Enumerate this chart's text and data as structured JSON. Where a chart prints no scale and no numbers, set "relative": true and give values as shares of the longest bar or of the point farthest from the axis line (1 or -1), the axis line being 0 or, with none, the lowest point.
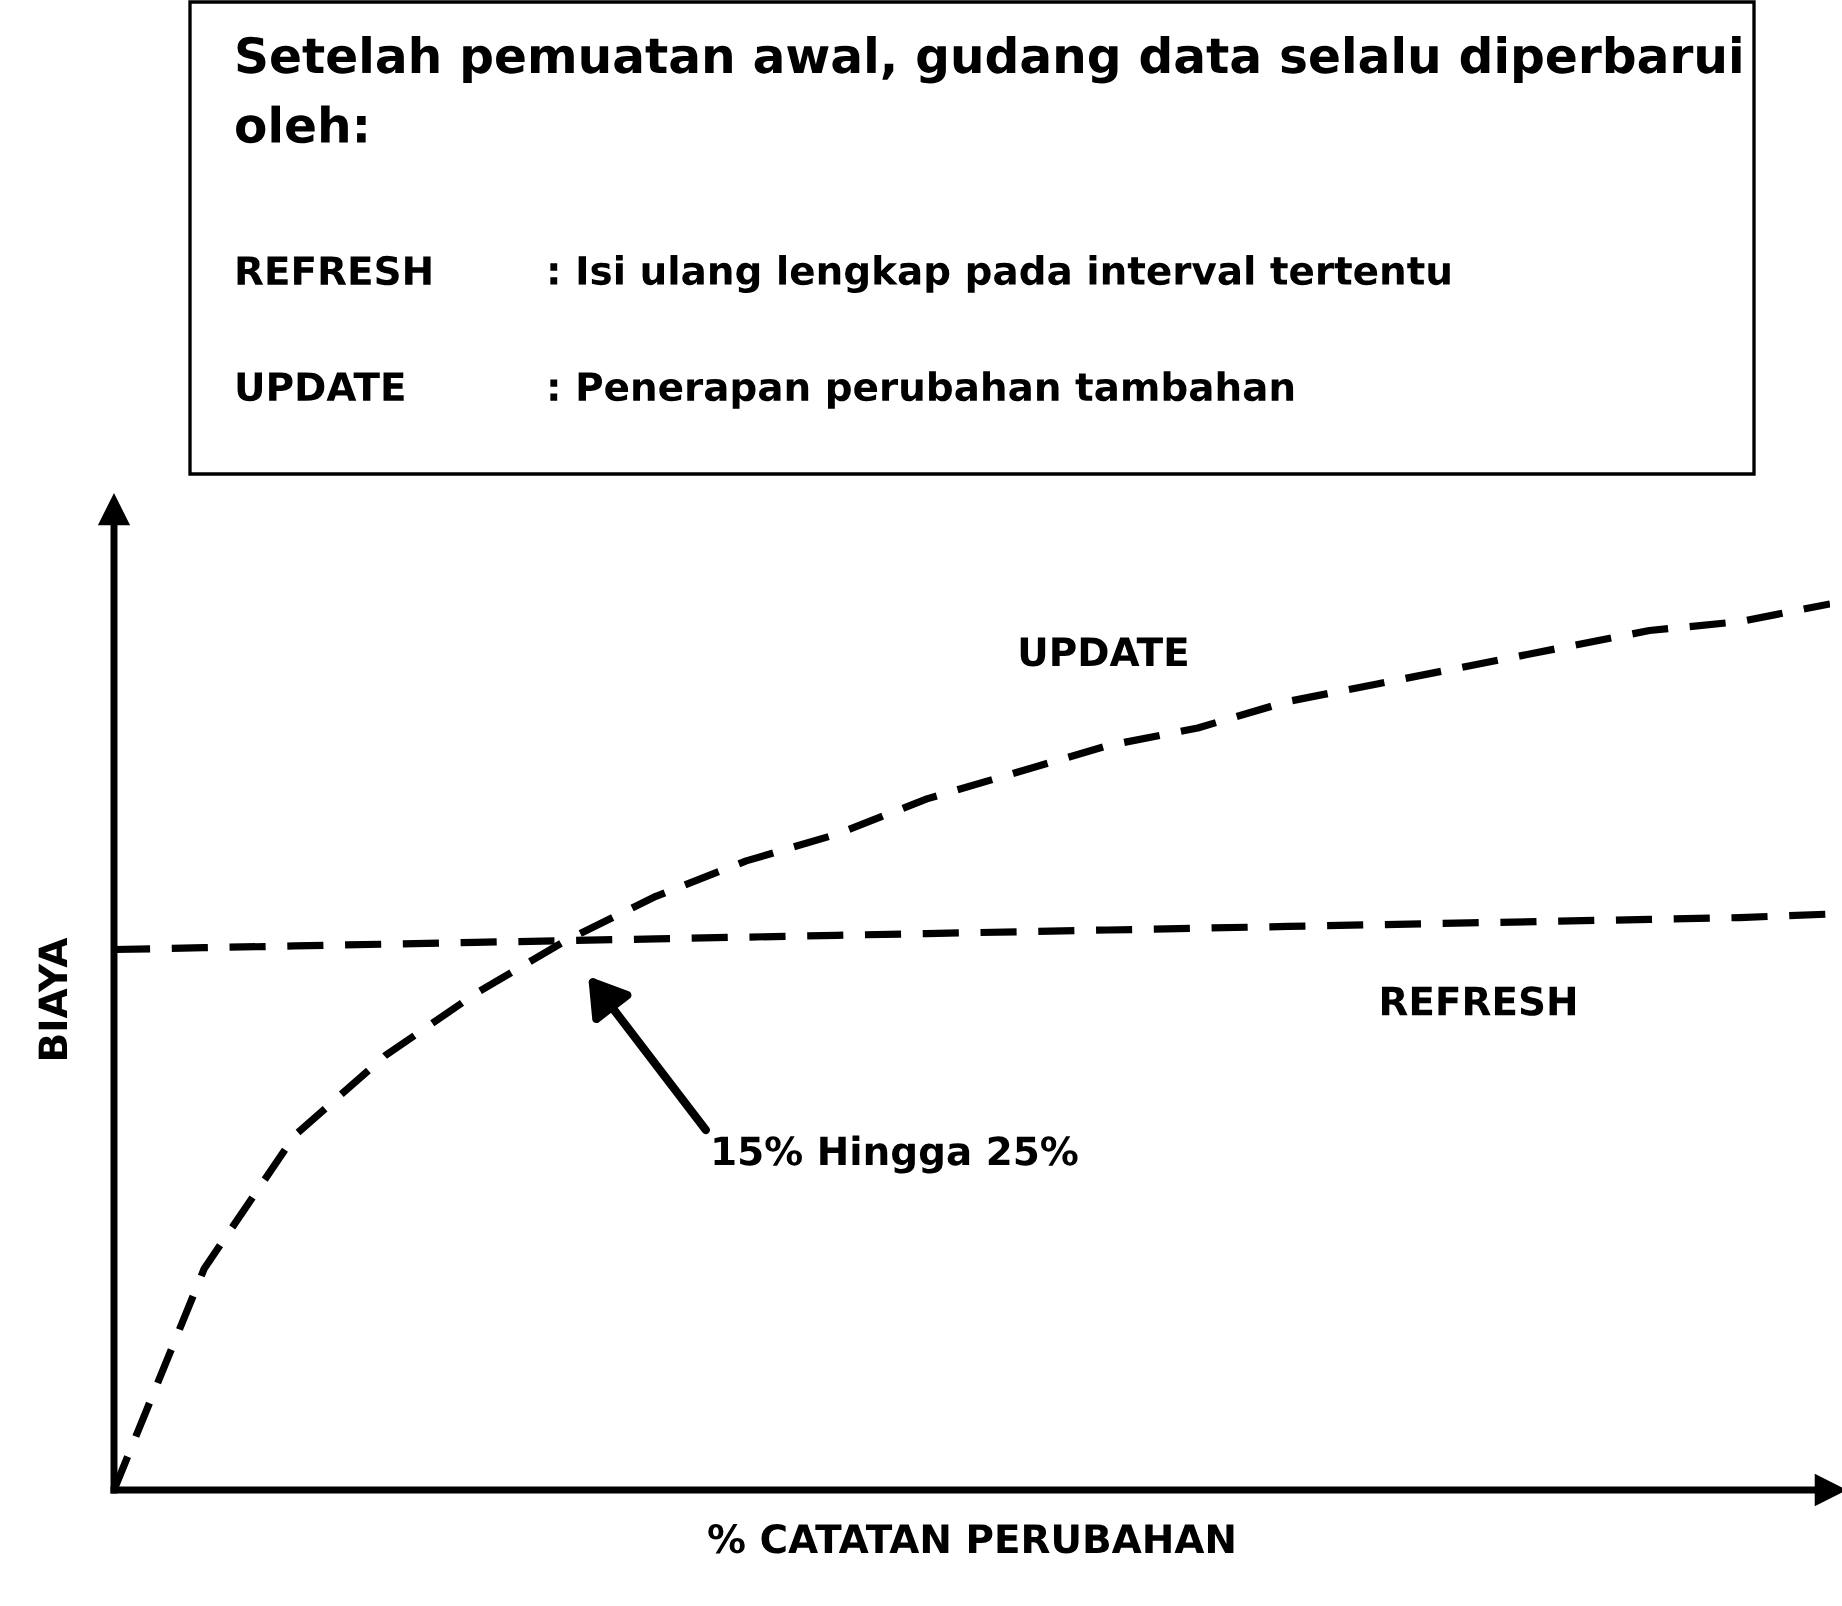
{
  "chart_data": {
    "type": "line",
    "title": "Setelah pemuatan awal, gudang data selalu diperbarui oleh:",
    "xlabel": "% CATATAN PERUBAHAN",
    "ylabel": "BIAYA",
    "relative": true,
    "line_style": "dashed",
    "marker": "none",
    "categories": [
      null,
      null,
      null,
      null,
      null,
      null,
      null,
      null,
      null,
      null,
      null,
      null,
      null,
      null,
      null,
      null,
      null,
      null,
      null,
      null
    ],
    "series": [
      {
        "name": "UPDATE",
        "color": "#000000",
        "values": [
          0,
          0.25,
          0.4,
          0.49,
          0.56,
          0.62,
          0.67,
          0.71,
          0.74,
          0.78,
          0.81,
          0.84,
          0.86,
          0.89,
          0.91,
          0.93,
          0.95,
          0.97,
          0.98,
          1
        ]
      },
      {
        "name": "REFRESH",
        "color": "#000000",
        "values": [
          0.61,
          0.612,
          0.614,
          0.616,
          0.618,
          0.62,
          0.622,
          0.624,
          0.626,
          0.628,
          0.63,
          0.632,
          0.634,
          0.636,
          0.638,
          0.64,
          0.642,
          0.644,
          0.646,
          0.65
        ]
      }
    ],
    "annotations": [
      "REFRESH",
      ": Isi ulang lengkap pada interval tertentu",
      "UPDATE",
      ": Penerapan perubahan tambahan",
      "15% Hingga 25%"
    ]
  }
}
